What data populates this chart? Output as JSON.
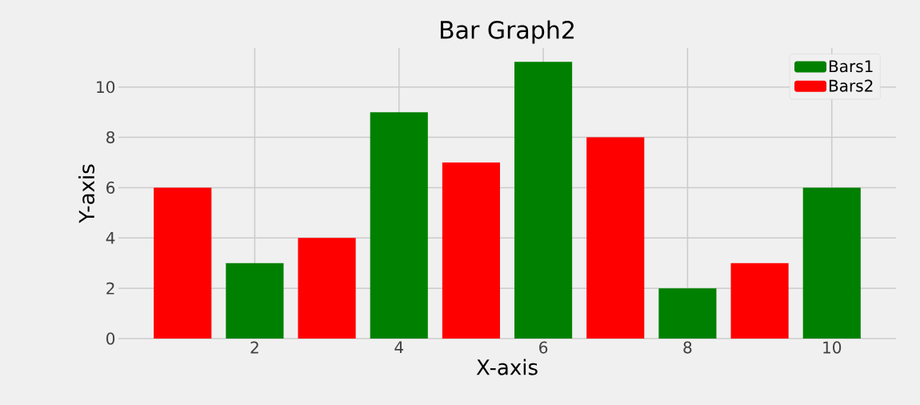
{
  "chart_data": {
    "type": "bar",
    "title": "Bar Graph2",
    "xlabel": "X-axis",
    "ylabel": "Y-axis",
    "series": [
      {
        "name": "Bars1",
        "color": "#008000",
        "x": [
          2,
          4,
          6,
          8,
          10
        ],
        "values": [
          3,
          9,
          11,
          2,
          6
        ]
      },
      {
        "name": "Bars2",
        "color": "#ff0000",
        "x": [
          1,
          3,
          5,
          7,
          9
        ],
        "values": [
          6,
          4,
          7,
          8,
          3
        ]
      }
    ],
    "xlim": [
      0.11,
      10.89
    ],
    "ylim": [
      0,
      11.55
    ],
    "xticks": [
      2,
      4,
      6,
      8,
      10
    ],
    "yticks": [
      0,
      2,
      4,
      6,
      8,
      10
    ],
    "grid": true,
    "legend": "top right"
  }
}
